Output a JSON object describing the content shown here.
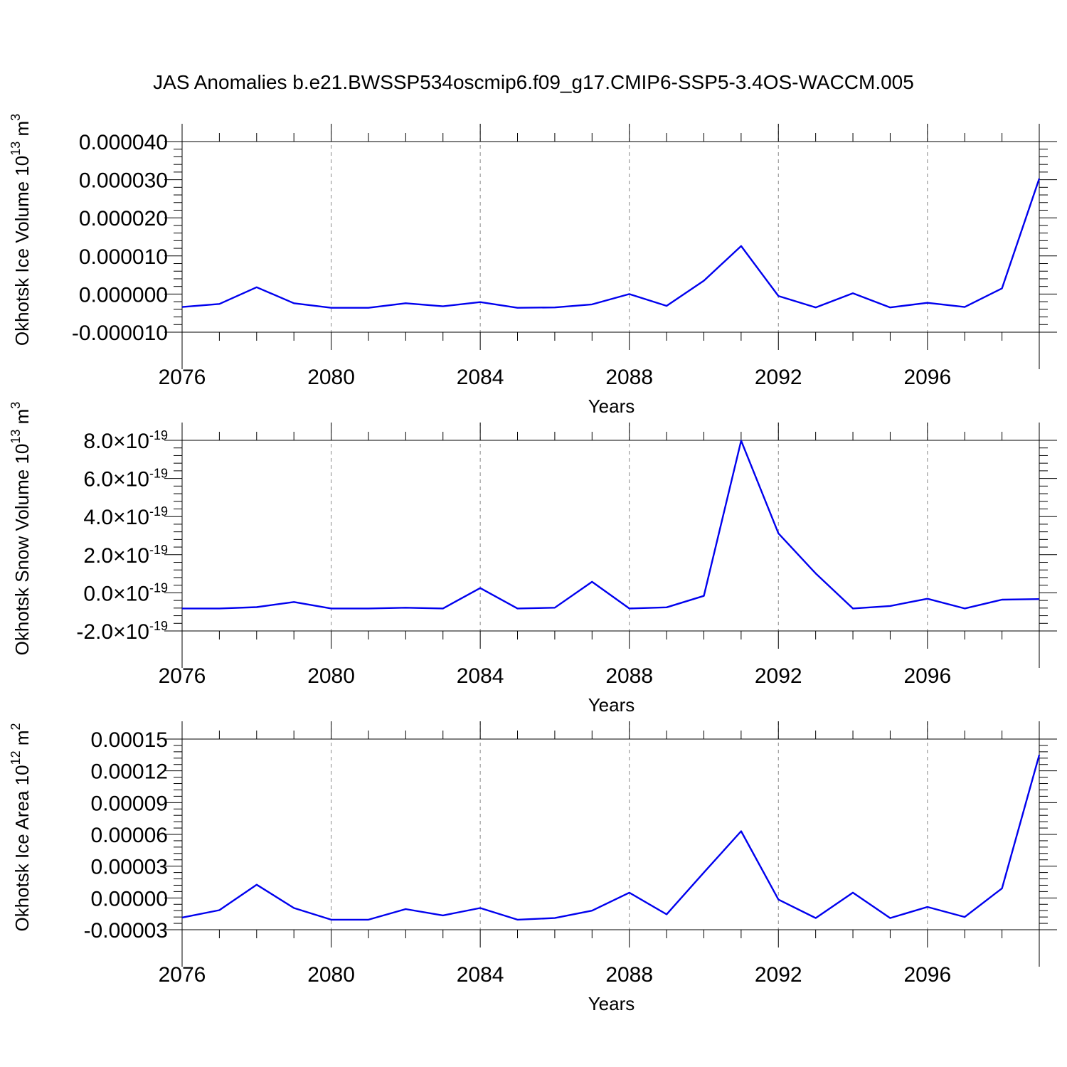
{
  "title": "JAS Anomalies b.e21.BWSSP534oscmip6.f09_g17.CMIP6-SSP5-3.4OS-WACCM.005",
  "chart_data": [
    {
      "type": "line",
      "xlabel": "Years",
      "ylabel": "Okhotsk Ice Volume 10",
      "ylabel_exp": "13",
      "ylabel_unit": " m",
      "ylabel_unit_exp": "3",
      "xlim": [
        2076,
        2099
      ],
      "ylim": [
        -1e-05,
        4e-05
      ],
      "xticks": [
        2076,
        2080,
        2084,
        2088,
        2092,
        2096
      ],
      "xtick_labels": [
        "2076",
        "2080",
        "2084",
        "2088",
        "2092",
        "2096"
      ],
      "yticks": [
        -1e-05,
        0.0,
        1e-05,
        2e-05,
        3e-05,
        4e-05
      ],
      "ytick_labels": [
        "-0.000010",
        "0.000000",
        "0.000010",
        "0.000020",
        "0.000030",
        "0.000040"
      ],
      "grid": "vertical-dashed",
      "color": "#0000ee",
      "x": [
        2076,
        2077,
        2078,
        2079,
        2080,
        2081,
        2082,
        2083,
        2084,
        2085,
        2086,
        2087,
        2088,
        2089,
        2090,
        2091,
        2092,
        2093,
        2094,
        2095,
        2096,
        2097,
        2098,
        2099
      ],
      "values": [
        -3.4e-06,
        -2.6e-06,
        1.8e-06,
        -2.4e-06,
        -3.6e-06,
        -3.6e-06,
        -2.4e-06,
        -3.2e-06,
        -2.1e-06,
        -3.6e-06,
        -3.5e-06,
        -2.7e-06,
        0.0,
        -3.1e-06,
        3.5e-06,
        1.26e-05,
        -5e-07,
        -3.5e-06,
        2e-07,
        -3.5e-06,
        -2.3e-06,
        -3.4e-06,
        1.5e-06,
        3.03e-05
      ]
    },
    {
      "type": "line",
      "xlabel": "Years",
      "ylabel": "Okhotsk Snow Volume 10",
      "ylabel_exp": "13",
      "ylabel_unit": " m",
      "ylabel_unit_exp": "3",
      "xlim": [
        2076,
        2099
      ],
      "ylim": [
        -2e-19,
        8e-19
      ],
      "xticks": [
        2076,
        2080,
        2084,
        2088,
        2092,
        2096
      ],
      "xtick_labels": [
        "2076",
        "2080",
        "2084",
        "2088",
        "2092",
        "2096"
      ],
      "yticks": [
        -2e-19,
        0.0,
        2e-19,
        4e-19,
        6e-19,
        8e-19
      ],
      "ytick_mantissas": [
        "-2.0",
        "0.0",
        "2.0",
        "4.0",
        "6.0",
        "8.0"
      ],
      "ytick_times": "×10",
      "ytick_exponent": "-19",
      "grid": "vertical-dashed",
      "color": "#0000ee",
      "x": [
        2076,
        2077,
        2078,
        2079,
        2080,
        2081,
        2082,
        2083,
        2084,
        2085,
        2086,
        2087,
        2088,
        2089,
        2090,
        2091,
        2092,
        2093,
        2094,
        2095,
        2096,
        2097,
        2098,
        2099
      ],
      "values": [
        -8.2e-20,
        -8.2e-20,
        -7.5e-20,
        -4.8e-20,
        -8.2e-20,
        -8.2e-20,
        -7.8e-20,
        -8.2e-20,
        2.5e-20,
        -8.2e-20,
        -7.8e-20,
        5.8e-20,
        -8.2e-20,
        -7.6e-20,
        -1.6e-20,
        7.98e-19,
        3.12e-19,
        1.02e-19,
        -8.2e-20,
        -6.9e-20,
        -3.1e-20,
        -8.2e-20,
        -3.6e-20,
        -3.3e-20
      ]
    },
    {
      "type": "line",
      "xlabel": "Years",
      "ylabel": "Okhotsk Ice Area 10",
      "ylabel_exp": "12",
      "ylabel_unit": " m",
      "ylabel_unit_exp": "2",
      "xlim": [
        2076,
        2099
      ],
      "ylim": [
        -3e-05,
        0.00015
      ],
      "xticks": [
        2076,
        2080,
        2084,
        2088,
        2092,
        2096
      ],
      "xtick_labels": [
        "2076",
        "2080",
        "2084",
        "2088",
        "2092",
        "2096"
      ],
      "yticks": [
        -3e-05,
        0.0,
        3e-05,
        6e-05,
        9e-05,
        0.00012,
        0.00015
      ],
      "ytick_labels": [
        "-0.00003",
        "0.00000",
        "0.00003",
        "0.00006",
        "0.00009",
        "0.00012",
        "0.00015"
      ],
      "grid": "vertical-dashed",
      "color": "#0000ee",
      "x": [
        2076,
        2077,
        2078,
        2079,
        2080,
        2081,
        2082,
        2083,
        2084,
        2085,
        2086,
        2087,
        2088,
        2089,
        2090,
        2091,
        2092,
        2093,
        2094,
        2095,
        2096,
        2097,
        2098,
        2099
      ],
      "values": [
        -1.85e-05,
        -1.15e-05,
        1.25e-05,
        -9.5e-06,
        -2.05e-05,
        -2.05e-05,
        -1.05e-05,
        -1.65e-05,
        -9.5e-06,
        -2.05e-05,
        -1.9e-05,
        -1.2e-05,
        5e-06,
        -1.55e-05,
        2.4e-05,
        6.3e-05,
        -1.5e-06,
        -1.9e-05,
        5e-06,
        -1.9e-05,
        -8.5e-06,
        -1.8e-05,
        9e-06,
        0.000135
      ]
    }
  ]
}
